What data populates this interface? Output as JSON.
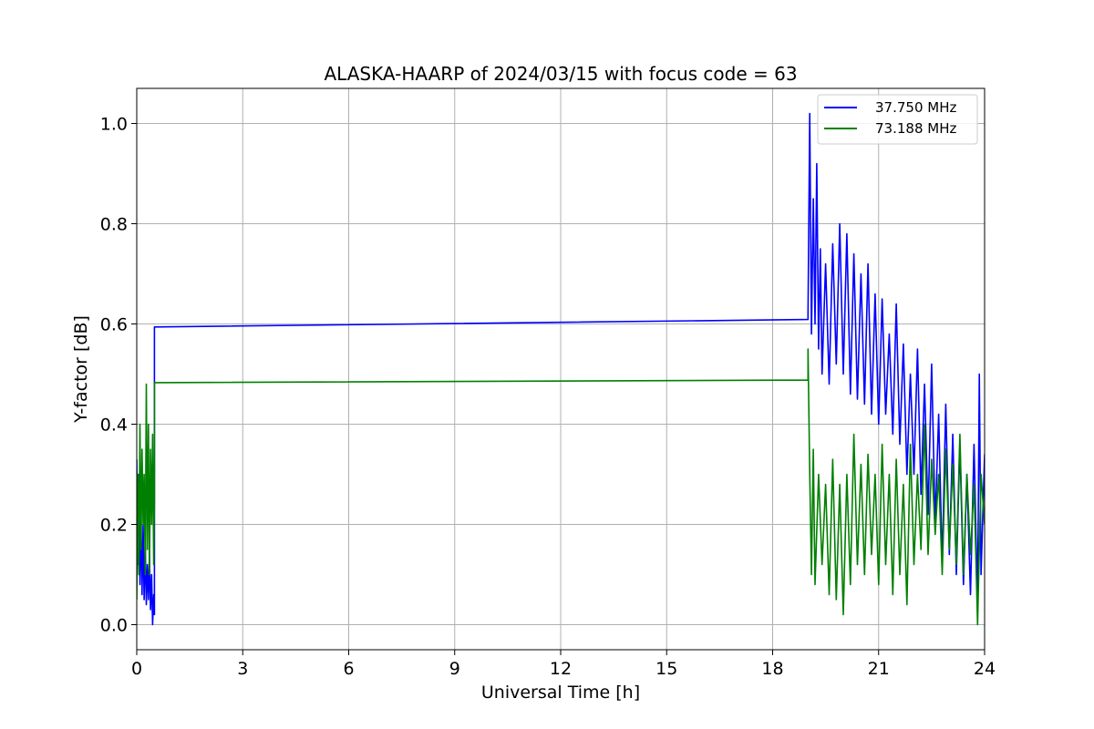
{
  "chart_data": {
    "type": "line",
    "title": "ALASKA-HAARP of 2024/03/15 with focus code = 63",
    "xlabel": "Universal Time [h]",
    "ylabel": "Y-factor [dB]",
    "xlim": [
      0,
      24
    ],
    "ylim": [
      -0.05,
      1.07
    ],
    "xticks": [
      "0",
      "3",
      "6",
      "9",
      "12",
      "15",
      "18",
      "21",
      "24"
    ],
    "yticks": [
      "0.0",
      "0.2",
      "0.4",
      "0.6",
      "0.8",
      "1.0"
    ],
    "grid": true,
    "legend_position": "top-right",
    "series": [
      {
        "name": "37.750 MHz",
        "color": "#0000ff",
        "points": [
          [
            0.0,
            0.33
          ],
          [
            0.03,
            0.12
          ],
          [
            0.06,
            0.3
          ],
          [
            0.09,
            0.08
          ],
          [
            0.12,
            0.22
          ],
          [
            0.15,
            0.06
          ],
          [
            0.18,
            0.2
          ],
          [
            0.21,
            0.05
          ],
          [
            0.24,
            0.16
          ],
          [
            0.27,
            0.04
          ],
          [
            0.3,
            0.12
          ],
          [
            0.33,
            0.05
          ],
          [
            0.36,
            0.14
          ],
          [
            0.39,
            0.03
          ],
          [
            0.42,
            0.1
          ],
          [
            0.45,
            0.0
          ],
          [
            0.48,
            0.06
          ],
          [
            0.5,
            0.02
          ],
          [
            0.5,
            0.594
          ],
          [
            19.0,
            0.609
          ],
          [
            19.0,
            0.62
          ],
          [
            19.05,
            1.02
          ],
          [
            19.1,
            0.58
          ],
          [
            19.15,
            0.85
          ],
          [
            19.2,
            0.6
          ],
          [
            19.25,
            0.92
          ],
          [
            19.3,
            0.55
          ],
          [
            19.35,
            0.75
          ],
          [
            19.4,
            0.5
          ],
          [
            19.5,
            0.72
          ],
          [
            19.6,
            0.48
          ],
          [
            19.7,
            0.76
          ],
          [
            19.8,
            0.52
          ],
          [
            19.9,
            0.8
          ],
          [
            20.0,
            0.5
          ],
          [
            20.1,
            0.78
          ],
          [
            20.2,
            0.46
          ],
          [
            20.3,
            0.74
          ],
          [
            20.4,
            0.45
          ],
          [
            20.5,
            0.7
          ],
          [
            20.6,
            0.44
          ],
          [
            20.7,
            0.72
          ],
          [
            20.8,
            0.42
          ],
          [
            20.9,
            0.66
          ],
          [
            21.0,
            0.4
          ],
          [
            21.1,
            0.65
          ],
          [
            21.2,
            0.42
          ],
          [
            21.3,
            0.58
          ],
          [
            21.4,
            0.38
          ],
          [
            21.5,
            0.64
          ],
          [
            21.6,
            0.36
          ],
          [
            21.7,
            0.56
          ],
          [
            21.8,
            0.3
          ],
          [
            21.9,
            0.5
          ],
          [
            22.0,
            0.3
          ],
          [
            22.1,
            0.55
          ],
          [
            22.2,
            0.26
          ],
          [
            22.3,
            0.48
          ],
          [
            22.4,
            0.22
          ],
          [
            22.5,
            0.52
          ],
          [
            22.6,
            0.2
          ],
          [
            22.7,
            0.42
          ],
          [
            22.8,
            0.12
          ],
          [
            22.9,
            0.44
          ],
          [
            23.0,
            0.14
          ],
          [
            23.1,
            0.38
          ],
          [
            23.2,
            0.1
          ],
          [
            23.3,
            0.36
          ],
          [
            23.4,
            0.08
          ],
          [
            23.5,
            0.3
          ],
          [
            23.6,
            0.06
          ],
          [
            23.7,
            0.36
          ],
          [
            23.8,
            0.04
          ],
          [
            23.85,
            0.5
          ],
          [
            23.9,
            0.1
          ],
          [
            24.0,
            0.34
          ]
        ]
      },
      {
        "name": "73.188 MHz",
        "color": "#008000",
        "points": [
          [
            0.0,
            0.05
          ],
          [
            0.03,
            0.3
          ],
          [
            0.06,
            0.1
          ],
          [
            0.09,
            0.4
          ],
          [
            0.12,
            0.15
          ],
          [
            0.15,
            0.35
          ],
          [
            0.18,
            0.2
          ],
          [
            0.21,
            0.3
          ],
          [
            0.24,
            0.1
          ],
          [
            0.27,
            0.48
          ],
          [
            0.3,
            0.15
          ],
          [
            0.33,
            0.4
          ],
          [
            0.36,
            0.1
          ],
          [
            0.39,
            0.35
          ],
          [
            0.42,
            0.2
          ],
          [
            0.45,
            0.38
          ],
          [
            0.48,
            0.12
          ],
          [
            0.5,
            0.25
          ],
          [
            0.5,
            0.483
          ],
          [
            19.0,
            0.488
          ],
          [
            19.0,
            0.55
          ],
          [
            19.05,
            0.3
          ],
          [
            19.1,
            0.1
          ],
          [
            19.15,
            0.35
          ],
          [
            19.2,
            0.08
          ],
          [
            19.3,
            0.3
          ],
          [
            19.4,
            0.12
          ],
          [
            19.5,
            0.28
          ],
          [
            19.6,
            0.06
          ],
          [
            19.7,
            0.33
          ],
          [
            19.8,
            0.05
          ],
          [
            19.9,
            0.28
          ],
          [
            20.0,
            0.02
          ],
          [
            20.1,
            0.3
          ],
          [
            20.2,
            0.08
          ],
          [
            20.3,
            0.38
          ],
          [
            20.4,
            0.12
          ],
          [
            20.5,
            0.32
          ],
          [
            20.6,
            0.1
          ],
          [
            20.7,
            0.34
          ],
          [
            20.8,
            0.14
          ],
          [
            20.9,
            0.3
          ],
          [
            21.0,
            0.08
          ],
          [
            21.1,
            0.36
          ],
          [
            21.2,
            0.12
          ],
          [
            21.3,
            0.3
          ],
          [
            21.4,
            0.06
          ],
          [
            21.5,
            0.33
          ],
          [
            21.6,
            0.1
          ],
          [
            21.7,
            0.28
          ],
          [
            21.8,
            0.04
          ],
          [
            21.9,
            0.36
          ],
          [
            22.0,
            0.12
          ],
          [
            22.1,
            0.3
          ],
          [
            22.2,
            0.15
          ],
          [
            22.3,
            0.4
          ],
          [
            22.4,
            0.14
          ],
          [
            22.5,
            0.33
          ],
          [
            22.6,
            0.18
          ],
          [
            22.7,
            0.3
          ],
          [
            22.8,
            0.1
          ],
          [
            22.9,
            0.35
          ],
          [
            23.0,
            0.15
          ],
          [
            23.1,
            0.32
          ],
          [
            23.2,
            0.12
          ],
          [
            23.3,
            0.38
          ],
          [
            23.4,
            0.1
          ],
          [
            23.5,
            0.3
          ],
          [
            23.6,
            0.14
          ],
          [
            23.7,
            0.28
          ],
          [
            23.8,
            0.0
          ],
          [
            23.9,
            0.3
          ],
          [
            24.0,
            0.2
          ]
        ]
      }
    ]
  }
}
